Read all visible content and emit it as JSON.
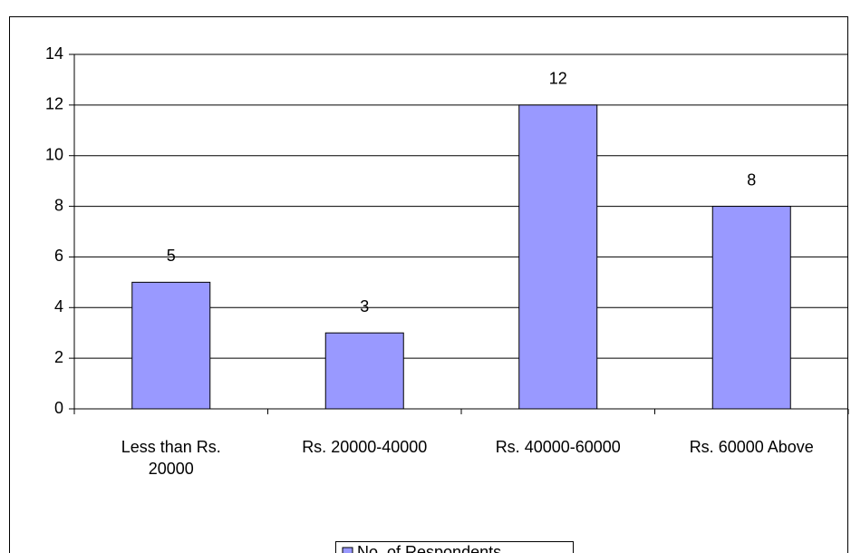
{
  "chart_data": {
    "type": "bar",
    "categories": [
      "Less than Rs. 20000",
      "Rs. 20000-40000",
      "Rs. 40000-60000",
      "Rs. 60000 Above"
    ],
    "series": [
      {
        "name": "No. of Respondents",
        "color": "#9999ff",
        "values": [
          5,
          3,
          12,
          8
        ]
      }
    ],
    "ylim": [
      0,
      14
    ],
    "yticks": [
      0,
      2,
      4,
      6,
      8,
      10,
      12,
      14
    ],
    "grid": true,
    "legend": "bottom"
  }
}
